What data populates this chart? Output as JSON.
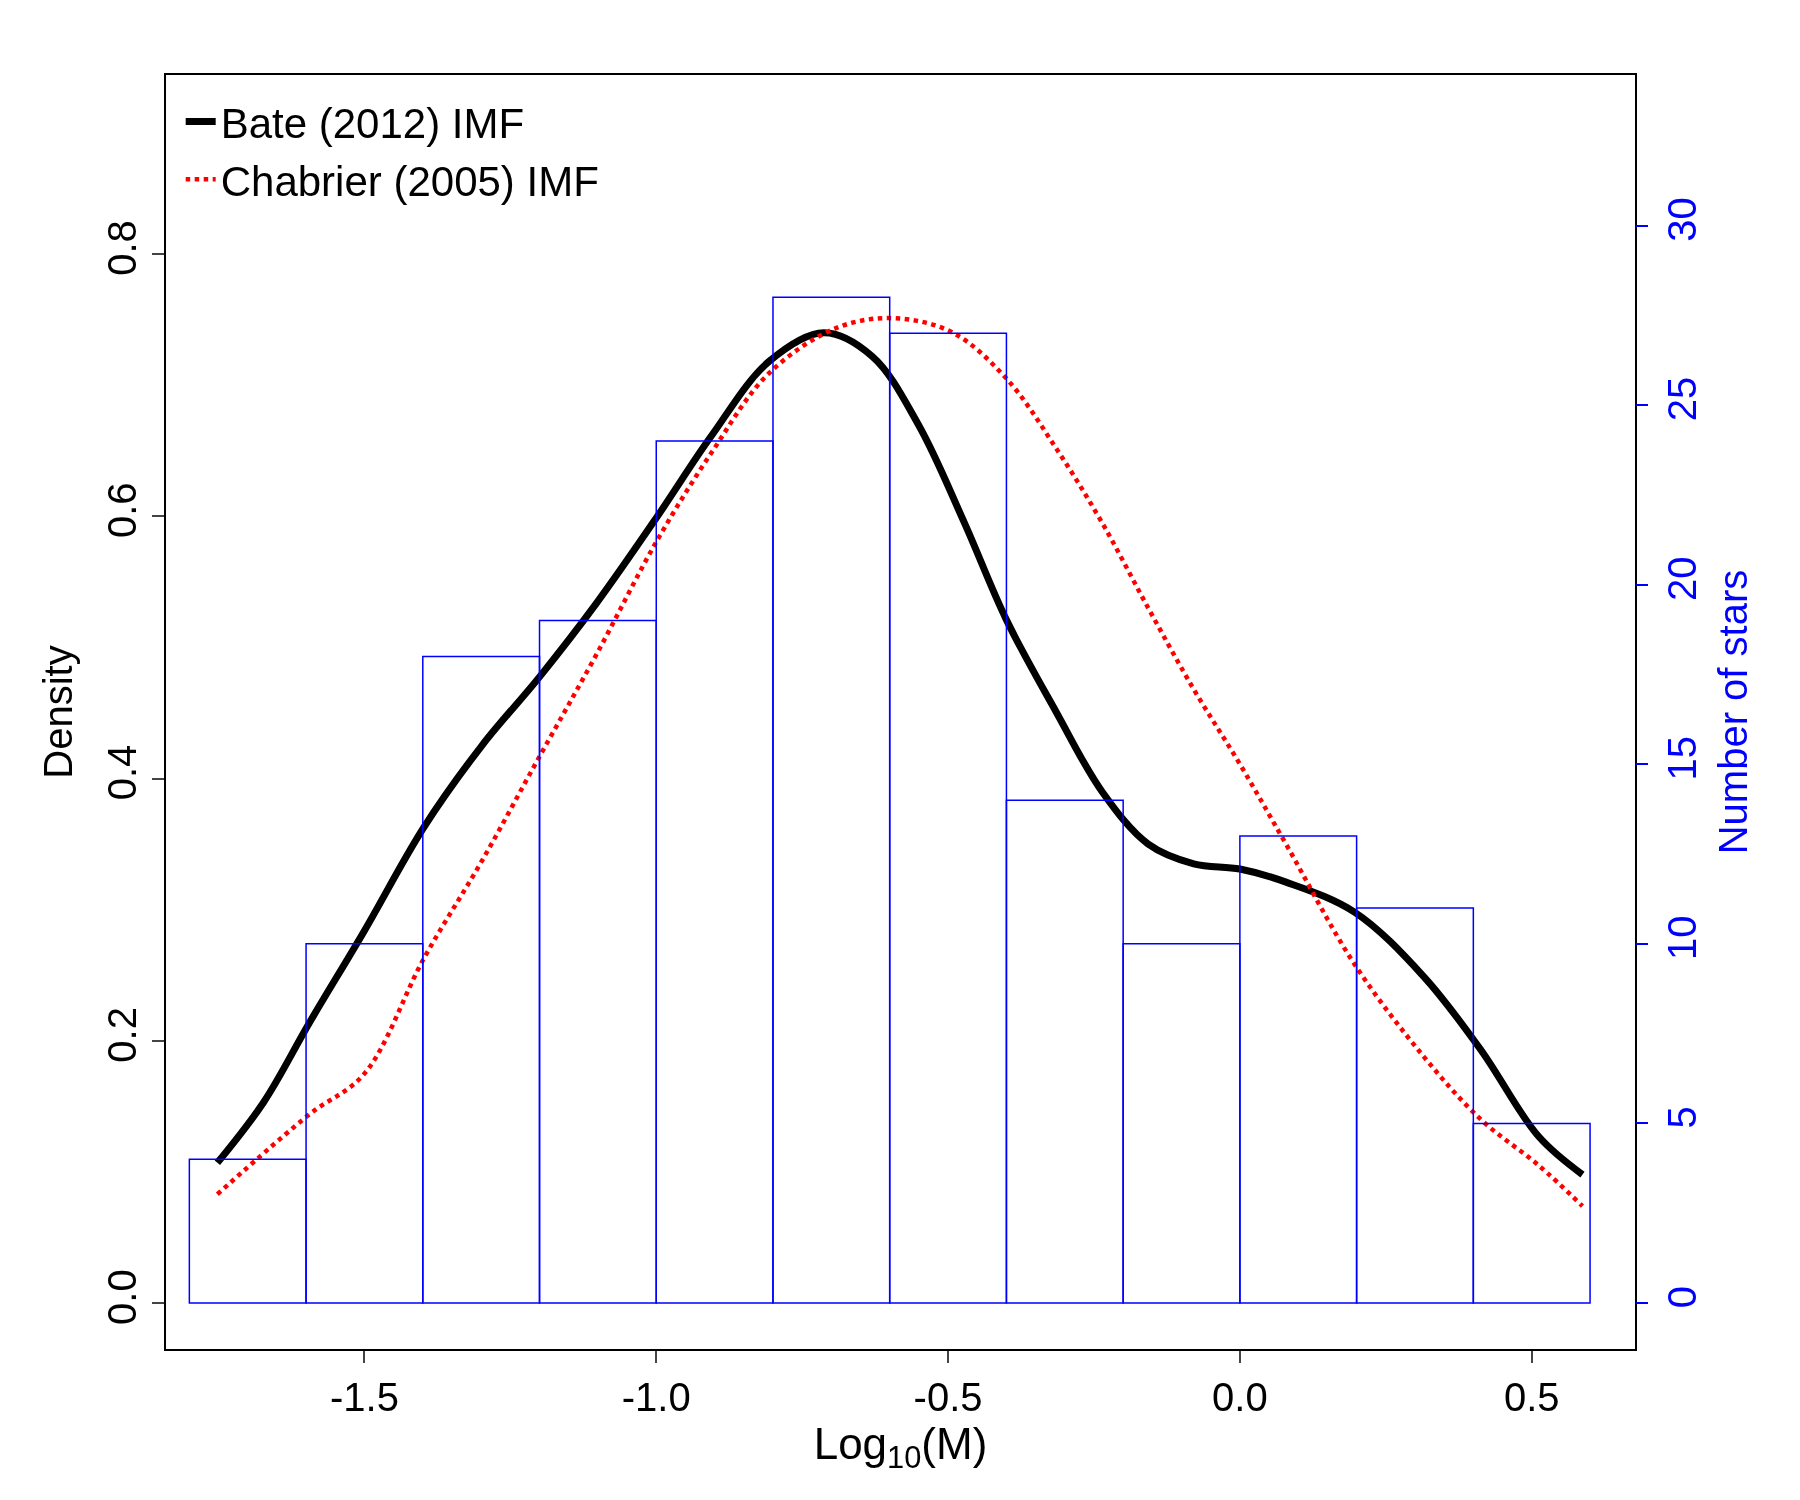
{
  "chart_data": {
    "type": "histogram",
    "xlabel": "Log$_{10}$(M)",
    "ylabel": "Density",
    "y2label": "Number of stars",
    "xlim": [
      -1.84,
      0.677
    ],
    "xticks": [
      -1.5,
      {
        "value": -1,
        "label": "-1.0"
      },
      -0.5,
      {
        "value": 0,
        "label": "0.0"
      },
      0.5
    ],
    "ylim": [
      -0.035,
      0.9365
    ],
    "yticks": [
      {
        "value": 0,
        "label": "0.0"
      },
      0.2,
      0.4,
      0.6,
      0.8
    ],
    "y2lim": [
      -1.28,
      34.19
    ],
    "y2ticks": [
      0,
      5,
      10,
      15,
      20,
      25,
      30
    ],
    "legend": "top left",
    "series": [
      {
        "axis": "y2",
        "color": "#0000ff",
        "bins": [
          -1.8,
          -1.6,
          -1.4,
          -1.2,
          -1.0,
          -0.8,
          -0.6,
          -0.4,
          -0.2,
          0.0,
          0.2,
          0.4,
          0.6
        ],
        "values": [
          4,
          10,
          18,
          19,
          24,
          28,
          27,
          14,
          10,
          13,
          11,
          5
        ]
      },
      {
        "type": "line",
        "name": "Bate (2012) IMF",
        "color": "#000000",
        "line_style": "solid",
        "x": [
          -1.752,
          -1.673,
          -1.594,
          -1.5,
          -1.398,
          -1.299,
          -1.201,
          -1.102,
          -0.998,
          -0.906,
          -0.807,
          -0.713,
          -0.63,
          -0.551,
          -0.472,
          -0.4,
          -0.315,
          -0.236,
          -0.157,
          -0.079,
          0.0,
          0.079,
          0.197,
          0.315,
          0.413,
          0.512,
          0.587
        ],
        "values": [
          0.107,
          0.153,
          0.214,
          0.284,
          0.363,
          0.425,
          0.477,
          0.534,
          0.6,
          0.661,
          0.718,
          0.74,
          0.722,
          0.67,
          0.595,
          0.521,
          0.451,
          0.39,
          0.35,
          0.335,
          0.331,
          0.321,
          0.298,
          0.249,
          0.193,
          0.127,
          0.098
        ]
      },
      {
        "type": "line",
        "name": "Chabrier (2005) IMF",
        "color": "#ff0000",
        "line_style": "dotted",
        "x": [
          -1.752,
          -1.594,
          -1.5,
          -1.398,
          -1.299,
          -1.201,
          -1.102,
          -0.998,
          -0.906,
          -0.807,
          -0.689,
          -0.591,
          -0.492,
          -0.4,
          -0.315,
          -0.236,
          -0.157,
          -0.079,
          0.0,
          0.079,
          0.197,
          0.315,
          0.413,
          0.512,
          0.587
        ],
        "values": [
          0.083,
          0.144,
          0.175,
          0.263,
          0.337,
          0.416,
          0.495,
          0.582,
          0.648,
          0.709,
          0.744,
          0.751,
          0.74,
          0.705,
          0.652,
          0.595,
          0.53,
          0.468,
          0.411,
          0.35,
          0.258,
          0.188,
          0.14,
          0.105,
          0.074
        ]
      }
    ]
  }
}
